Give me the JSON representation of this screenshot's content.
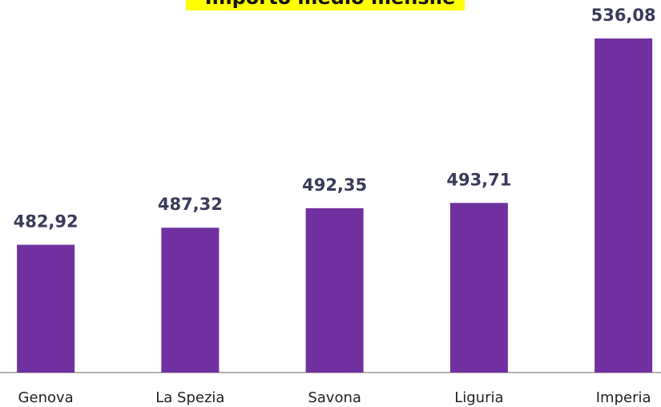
{
  "chart_data": {
    "type": "bar",
    "title": "Importo medio mensile",
    "categories": [
      "Genova",
      "La Spezia",
      "Savona",
      "Liguria",
      "Imperia"
    ],
    "values": [
      482.92,
      487.32,
      492.35,
      493.71,
      536.08
    ],
    "value_labels": [
      "482,92",
      "487,32",
      "492,35",
      "493,71",
      "536,08"
    ],
    "color": "#7030a0",
    "ylim": [
      450,
      546
    ]
  }
}
